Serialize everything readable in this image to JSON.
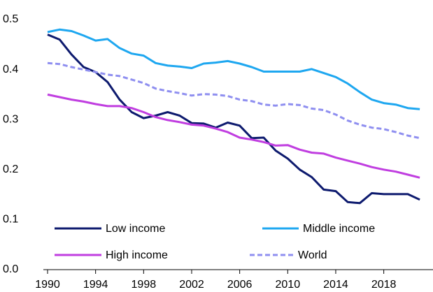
{
  "chart_data": {
    "type": "line",
    "x": [
      1990,
      1991,
      1992,
      1993,
      1994,
      1995,
      1996,
      1997,
      1998,
      1999,
      2000,
      2001,
      2002,
      2003,
      2004,
      2005,
      2006,
      2007,
      2008,
      2009,
      2010,
      2011,
      2012,
      2013,
      2014,
      2015,
      2016,
      2017,
      2018,
      2019,
      2020,
      2021
    ],
    "series": [
      {
        "name": "Low income",
        "color": "#0d1a6e",
        "values": [
          0.47,
          0.46,
          0.43,
          0.405,
          0.395,
          0.375,
          0.34,
          0.315,
          0.303,
          0.308,
          0.315,
          0.308,
          0.293,
          0.292,
          0.284,
          0.294,
          0.288,
          0.263,
          0.264,
          0.238,
          0.222,
          0.2,
          0.185,
          0.16,
          0.157,
          0.135,
          0.133,
          0.153,
          0.151,
          0.151,
          0.151,
          0.14
        ]
      },
      {
        "name": "Middle income",
        "color": "#1ea7f0",
        "values": [
          0.475,
          0.48,
          0.477,
          0.468,
          0.458,
          0.461,
          0.443,
          0.432,
          0.428,
          0.413,
          0.408,
          0.406,
          0.403,
          0.412,
          0.414,
          0.417,
          0.412,
          0.405,
          0.396,
          0.396,
          0.396,
          0.396,
          0.401,
          0.393,
          0.385,
          0.372,
          0.355,
          0.34,
          0.333,
          0.33,
          0.323,
          0.321
        ]
      },
      {
        "name": "High income",
        "color": "#c03ee0",
        "values": [
          0.35,
          0.345,
          0.34,
          0.336,
          0.331,
          0.327,
          0.327,
          0.323,
          0.315,
          0.305,
          0.299,
          0.295,
          0.29,
          0.288,
          0.282,
          0.275,
          0.264,
          0.26,
          0.255,
          0.248,
          0.249,
          0.24,
          0.234,
          0.232,
          0.224,
          0.218,
          0.212,
          0.205,
          0.2,
          0.196,
          0.19,
          0.184
        ]
      },
      {
        "name": "World",
        "color": "#8f8ff0",
        "dashed": true,
        "values": [
          0.413,
          0.411,
          0.405,
          0.4,
          0.395,
          0.39,
          0.387,
          0.38,
          0.373,
          0.362,
          0.357,
          0.353,
          0.348,
          0.351,
          0.35,
          0.347,
          0.34,
          0.337,
          0.33,
          0.328,
          0.331,
          0.329,
          0.322,
          0.319,
          0.31,
          0.298,
          0.29,
          0.284,
          0.281,
          0.275,
          0.268,
          0.263
        ]
      }
    ],
    "xlim": [
      1989.65,
      2022.1
    ],
    "xticks": [
      1990,
      1994,
      1998,
      2002,
      2006,
      2010,
      2014,
      2018
    ],
    "ylim": [
      0,
      0.5
    ],
    "yticks": [
      {
        "value": 0,
        "label": "0.0"
      },
      0.1,
      0.2,
      0.3,
      0.4,
      0.5
    ],
    "grid": false
  }
}
